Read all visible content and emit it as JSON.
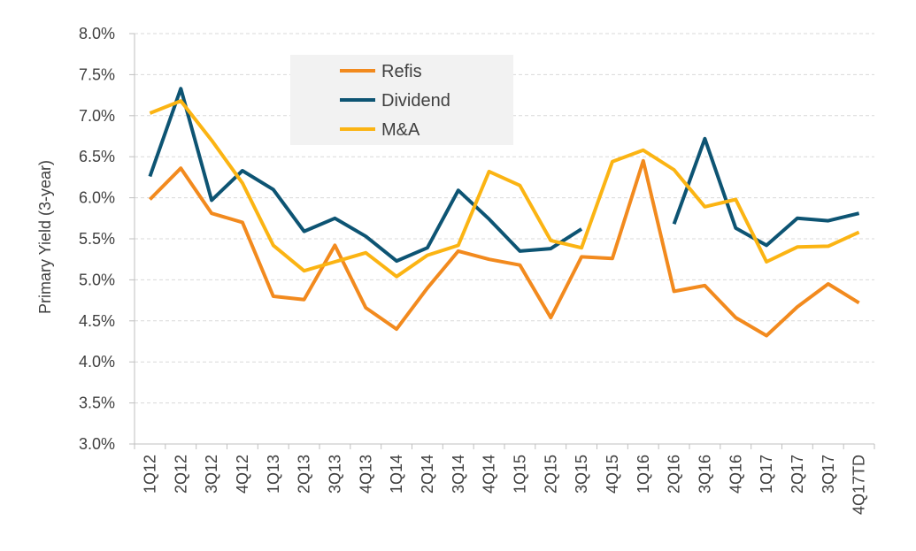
{
  "chart_data": {
    "type": "line",
    "title": "",
    "xlabel": "",
    "ylabel": "Primary Yield (3-year)",
    "ylim": [
      3.0,
      8.0
    ],
    "ytick_labels": [
      "3.0%",
      "3.5%",
      "4.0%",
      "4.5%",
      "5.0%",
      "5.5%",
      "6.0%",
      "6.5%",
      "7.0%",
      "7.5%",
      "8.0%"
    ],
    "categories": [
      "1Q12",
      "2Q12",
      "3Q12",
      "4Q12",
      "1Q13",
      "2Q13",
      "3Q13",
      "4Q13",
      "1Q14",
      "2Q14",
      "3Q14",
      "4Q14",
      "1Q15",
      "2Q15",
      "3Q15",
      "4Q15",
      "1Q16",
      "2Q16",
      "3Q16",
      "4Q16",
      "1Q17",
      "2Q17",
      "3Q17",
      "4Q17TD"
    ],
    "grid": true,
    "legend_position": "top-left",
    "series": [
      {
        "name": "Refis",
        "color": "#F28A1E",
        "values": [
          5.98,
          6.36,
          5.81,
          5.7,
          4.8,
          4.76,
          5.42,
          4.66,
          4.4,
          4.9,
          5.35,
          5.25,
          5.18,
          4.54,
          5.28,
          5.26,
          6.45,
          4.86,
          4.93,
          4.54,
          4.32,
          4.67,
          4.95,
          4.72
        ]
      },
      {
        "name": "Dividend",
        "color": "#0D5473",
        "values": [
          6.26,
          7.33,
          5.97,
          6.33,
          6.1,
          5.59,
          5.75,
          5.53,
          5.23,
          5.39,
          6.09,
          5.74,
          5.35,
          5.38,
          5.62,
          null,
          null,
          5.68,
          6.72,
          5.63,
          5.42,
          5.75,
          5.72,
          5.81
        ]
      },
      {
        "name": "M&A",
        "color": "#FBB413",
        "values": [
          7.03,
          7.18,
          6.7,
          6.18,
          5.42,
          5.11,
          5.22,
          5.33,
          5.04,
          5.3,
          5.42,
          6.32,
          6.15,
          5.48,
          5.39,
          6.44,
          6.58,
          6.34,
          5.89,
          5.98,
          5.22,
          5.4,
          5.41,
          5.58
        ]
      }
    ]
  }
}
